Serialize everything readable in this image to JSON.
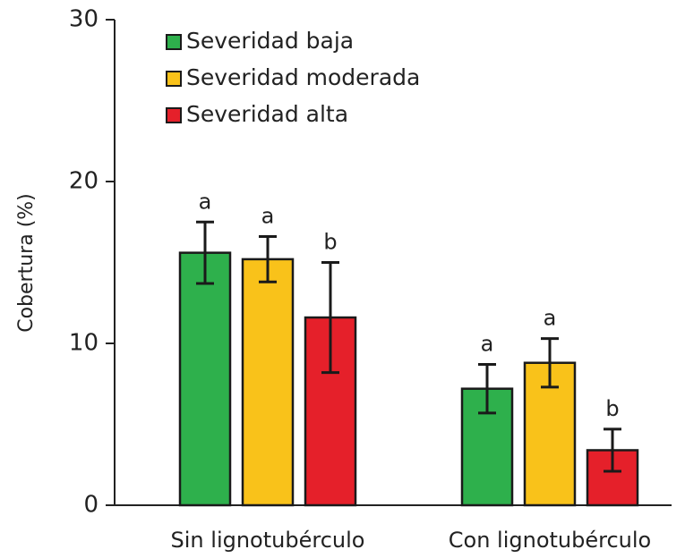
{
  "chart_data": {
    "type": "bar",
    "ylabel": "Cobertura  (%)",
    "categories": [
      "Sin lignotubérculo",
      "Con lignotubérculo"
    ],
    "series": [
      {
        "name": "Severidad baja",
        "color": "#2eb04c",
        "values": [
          15.6,
          7.2
        ],
        "errors": [
          1.9,
          1.5
        ],
        "letters": [
          "a",
          "a"
        ]
      },
      {
        "name": "Severidad moderada",
        "color": "#f9c21a",
        "values": [
          15.2,
          8.8
        ],
        "errors": [
          1.4,
          1.5
        ],
        "letters": [
          "a",
          "a"
        ]
      },
      {
        "name": "Severidad alta",
        "color": "#e5202a",
        "values": [
          11.6,
          3.4
        ],
        "errors": [
          3.4,
          1.3
        ],
        "letters": [
          "b",
          "b"
        ]
      }
    ],
    "ylim": [
      0,
      30
    ],
    "yticks": [
      0,
      10,
      20,
      30
    ],
    "grid": false,
    "legend": "upper left"
  }
}
